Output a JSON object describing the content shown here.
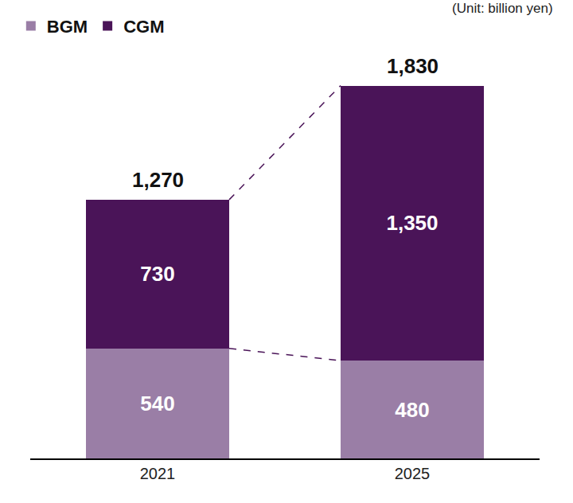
{
  "chart_data": {
    "type": "bar",
    "stacked": true,
    "unit_note": "(Unit: billion yen)",
    "categories": [
      "2021",
      "2025"
    ],
    "series": [
      {
        "name": "BGM",
        "color": "#9a7ea6",
        "values": [
          540,
          480
        ]
      },
      {
        "name": "CGM",
        "color": "#4a1458",
        "values": [
          730,
          1350
        ],
        "value_labels": [
          "730",
          "1,350"
        ]
      }
    ],
    "totals": [
      1270,
      1830
    ],
    "total_labels": [
      "1,270",
      "1,830"
    ],
    "data_labels": true,
    "legend": "top-left",
    "tick_labels": "x",
    "grid": false,
    "ylim": [
      0,
      2000
    ]
  }
}
